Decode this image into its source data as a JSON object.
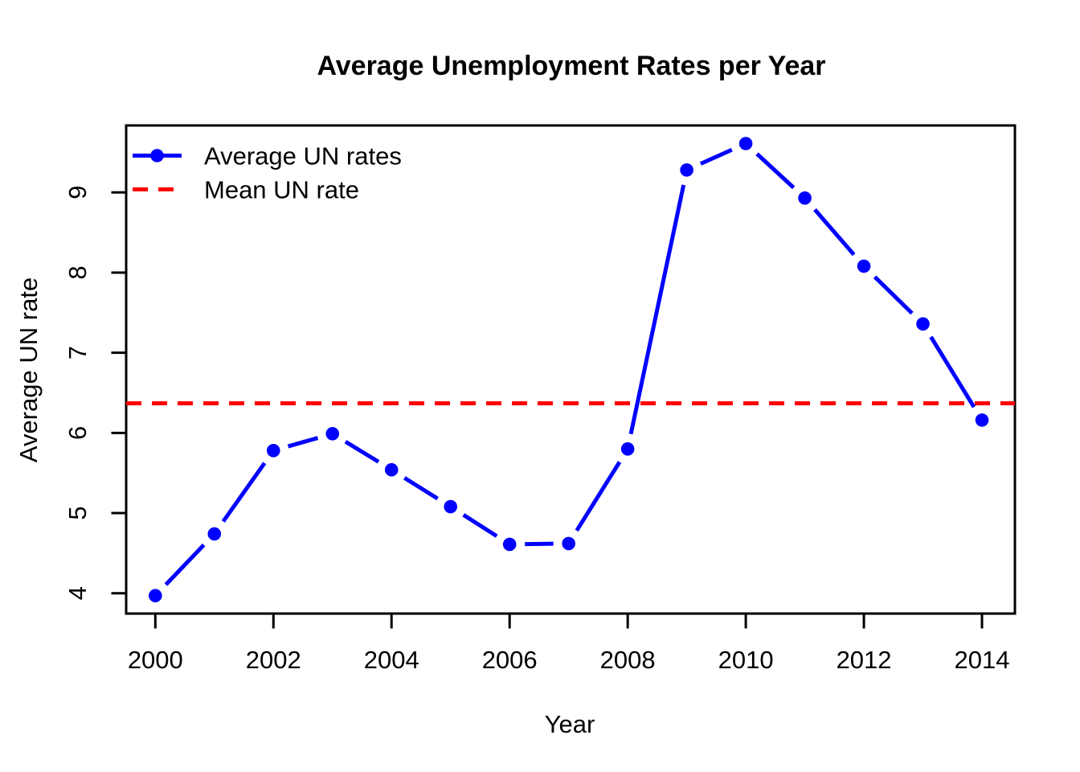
{
  "chart_data": {
    "type": "line",
    "title": "Average Unemployment Rates per Year",
    "xlabel": "Year",
    "ylabel": "Average UN rate",
    "x": [
      2000,
      2001,
      2002,
      2003,
      2004,
      2005,
      2006,
      2007,
      2008,
      2009,
      2010,
      2011,
      2012,
      2013,
      2014
    ],
    "series": [
      {
        "name": "Average UN rates",
        "color": "#0000FF",
        "line_style": "solid",
        "marker": "filled-circle",
        "values": [
          3.97,
          4.74,
          5.78,
          5.99,
          5.54,
          5.08,
          4.61,
          4.62,
          5.8,
          9.28,
          9.61,
          8.93,
          8.08,
          7.36,
          6.16
        ]
      },
      {
        "name": "Mean UN rate",
        "color": "#FF0000",
        "line_style": "dashed",
        "orientation": "horizontal",
        "value": 6.37
      }
    ],
    "xticks": [
      2000,
      2002,
      2004,
      2006,
      2008,
      2010,
      2012,
      2014
    ],
    "yticks": [
      4,
      5,
      6,
      7,
      8,
      9
    ],
    "xlim": [
      1999.5,
      2014.56
    ],
    "ylim": [
      3.75,
      9.84
    ],
    "grid": false,
    "legend_position": "top-left",
    "background_color": "#FFFFFF",
    "axis_color": "#000000"
  }
}
